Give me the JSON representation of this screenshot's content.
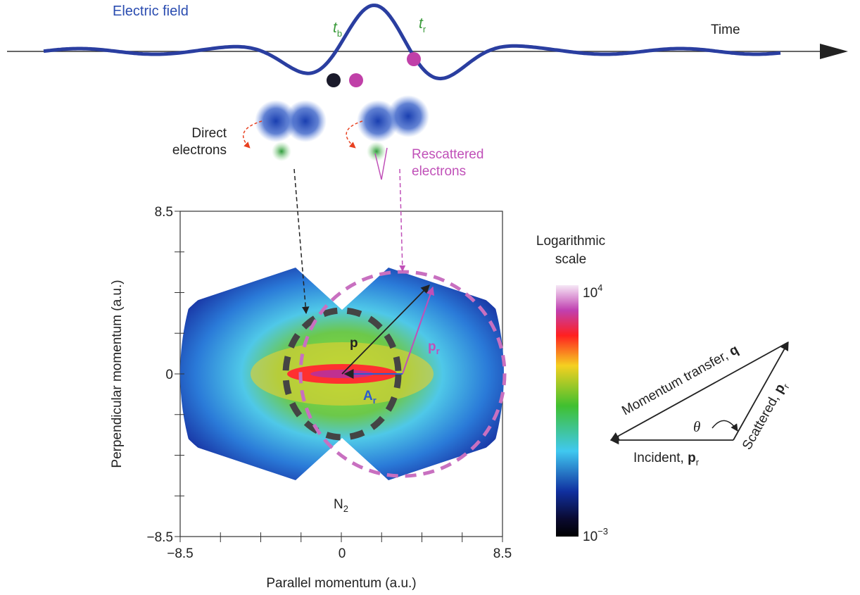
{
  "wave": {
    "label": "Electric field",
    "time_label": "Time",
    "t_birth": {
      "base": "t",
      "sub": "b"
    },
    "t_return": {
      "base": "t",
      "sub": "r"
    }
  },
  "electrons": {
    "direct": [
      "Direct",
      "electrons"
    ],
    "rescattered": [
      "Rescattered",
      "electrons"
    ]
  },
  "plot": {
    "y_label": "Perpendicular momentum (a.u.)",
    "x_label": "Parallel momentum (a.u.)",
    "y_ticks": [
      "8.5",
      "0",
      "−8.5"
    ],
    "x_ticks": [
      "−8.5",
      "0",
      "8.5"
    ],
    "p_label": "p",
    "pr_label": {
      "base": "p",
      "sub": "r"
    },
    "ar_label": {
      "base": "A",
      "sub": "r"
    },
    "molecule": {
      "base": "N",
      "sub": "2"
    }
  },
  "colorbar": {
    "title": [
      "Logarithmic",
      "scale"
    ],
    "top": {
      "base": "10",
      "sup": "4"
    },
    "bottom": {
      "base": "10",
      "sup": "−3"
    }
  },
  "triangle": {
    "transfer": {
      "text": "Momentum transfer, ",
      "bold": "q"
    },
    "scattered": {
      "text": "Scattered, ",
      "bold": "p",
      "sub": "r"
    },
    "incident": {
      "text": "Incident, ",
      "bold": "p",
      "sub": "r"
    },
    "angle": "θ"
  }
}
